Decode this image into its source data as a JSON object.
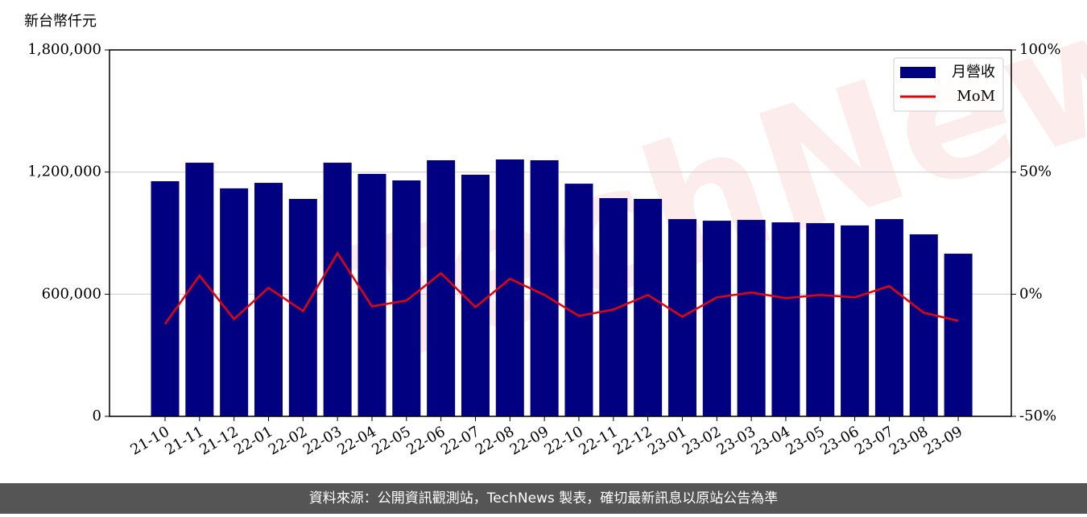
{
  "chart_data": {
    "type": "bar_line",
    "y_label": "新台幣仟元",
    "watermark": "TechNews",
    "footer": "資料來源：公開資訊觀測站，TechNews 製表，確切最新訊息以原站公告為準",
    "categories": [
      "21-10",
      "21-11",
      "21-12",
      "22-01",
      "22-02",
      "22-03",
      "22-04",
      "22-05",
      "22-06",
      "22-07",
      "22-08",
      "22-09",
      "22-10",
      "22-11",
      "22-12",
      "23-01",
      "23-02",
      "23-03",
      "23-04",
      "23-05",
      "23-06",
      "23-07",
      "23-08",
      "23-09"
    ],
    "series": [
      {
        "name": "月營收",
        "color": "#000080",
        "type": "bar",
        "values": [
          1155000,
          1246000,
          1120000,
          1147000,
          1068000,
          1246000,
          1191000,
          1159000,
          1258000,
          1187000,
          1262000,
          1258000,
          1143000,
          1072000,
          1068000,
          969000,
          961000,
          965000,
          953000,
          949000,
          938000,
          969000,
          894000,
          799000
        ]
      },
      {
        "name": "MoM",
        "color": "#e8000b",
        "type": "line",
        "axis": "y2",
        "values": [
          -12.2,
          7.6,
          -10.2,
          2.6,
          -6.9,
          16.8,
          -5.0,
          -2.6,
          8.6,
          -5.3,
          6.3,
          -0.3,
          -8.9,
          -6.3,
          -0.3,
          -9.2,
          -1.3,
          0.7,
          -1.6,
          -0.3,
          -1.3,
          3.3,
          -7.6,
          -10.9
        ]
      }
    ],
    "ylim": [
      0,
      1800000
    ],
    "yticks": [
      0,
      {
        "value": 600000,
        "label": "600,000"
      },
      {
        "value": 1200000,
        "label": "1,200,000"
      },
      {
        "value": 1800000,
        "label": "1,800,000"
      }
    ],
    "y2lim": [
      -50,
      100
    ],
    "y2ticks": [
      {
        "value": -50,
        "label": "-50%"
      },
      {
        "value": 0,
        "label": "0%"
      },
      {
        "value": 50,
        "label": "50%"
      },
      {
        "value": 100,
        "label": "100%"
      }
    ],
    "grid": true,
    "legend": "upper right"
  }
}
